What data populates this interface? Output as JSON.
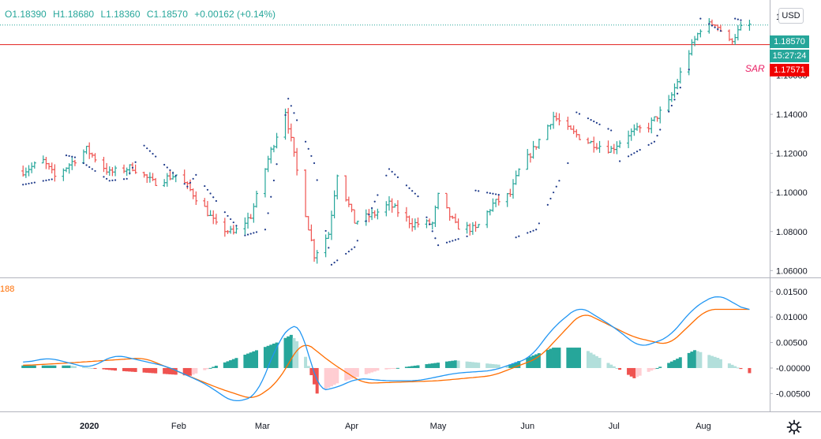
{
  "legend": {
    "open": "O1.18390",
    "high": "H1.18680",
    "low": "L1.18360",
    "close": "C1.18570",
    "change": "+0.00162 (+0.14%)"
  },
  "currency_button": "USD",
  "price_badge": "1.18570",
  "timer_badge": "15:27:24",
  "sar_badge": "1.17571",
  "sar_label": "SAR",
  "indicator_label": "188",
  "colors": {
    "up": "#26a69a",
    "down": "#ef5350",
    "sar": "#1e3a8a",
    "macd": "#2196f3",
    "signal": "#ff6d00",
    "hist_up_strong": "#26a69a",
    "hist_up_weak": "#b2dfdb",
    "hist_down_strong": "#ef5350",
    "hist_down_weak": "#ffcdd2",
    "hline": "#e53935",
    "price_line": "#26a69a"
  },
  "chart_data": [
    {
      "type": "ohlc",
      "y_ticks": [
        "1.06000",
        "1.08000",
        "1.10000",
        "1.12000",
        "1.14000",
        "1.16000"
      ],
      "y_top_tick": "1.1",
      "ylim": [
        1.0565,
        1.1965
      ],
      "x_ticks": [
        "2020",
        "Feb",
        "Mar",
        "Apr",
        "May",
        "Jun",
        "Jul",
        "Aug"
      ],
      "x_tick_dates": [
        "2020-01-01",
        "2020-02-01",
        "2020-03-01",
        "2020-04-01",
        "2020-05-01",
        "2020-06-01",
        "2020-07-01",
        "2020-08-01"
      ],
      "horizontal_line": 1.1757,
      "last_price": 1.1857,
      "anchors": [
        [
          "2019-12-09",
          1.111
        ],
        [
          "2019-12-16",
          1.116
        ],
        [
          "2019-12-20",
          1.108
        ],
        [
          "2019-12-31",
          1.122
        ],
        [
          "2020-01-08",
          1.11
        ],
        [
          "2020-01-16",
          1.113
        ],
        [
          "2020-01-23",
          1.105
        ],
        [
          "2020-01-31",
          1.109
        ],
        [
          "2020-02-04",
          1.103
        ],
        [
          "2020-02-10",
          1.092
        ],
        [
          "2020-02-14",
          1.083
        ],
        [
          "2020-02-20",
          1.079
        ],
        [
          "2020-02-26",
          1.088
        ],
        [
          "2020-03-03",
          1.117
        ],
        [
          "2020-03-09",
          1.142
        ],
        [
          "2020-03-13",
          1.111
        ],
        [
          "2020-03-19",
          1.068
        ],
        [
          "2020-03-24",
          1.079
        ],
        [
          "2020-03-27",
          1.11
        ],
        [
          "2020-04-02",
          1.085
        ],
        [
          "2020-04-09",
          1.089
        ],
        [
          "2020-04-14",
          1.094
        ],
        [
          "2020-04-22",
          1.084
        ],
        [
          "2020-04-29",
          1.084
        ],
        [
          "2020-05-01",
          1.098
        ],
        [
          "2020-05-07",
          1.083
        ],
        [
          "2020-05-14",
          1.081
        ],
        [
          "2020-05-20",
          1.094
        ],
        [
          "2020-05-26",
          1.099
        ],
        [
          "2020-05-29",
          1.111
        ],
        [
          "2020-06-03",
          1.122
        ],
        [
          "2020-06-10",
          1.139
        ],
        [
          "2020-06-15",
          1.132
        ],
        [
          "2020-06-22",
          1.126
        ],
        [
          "2020-06-30",
          1.122
        ],
        [
          "2020-07-06",
          1.13
        ],
        [
          "2020-07-13",
          1.134
        ],
        [
          "2020-07-20",
          1.146
        ],
        [
          "2020-07-27",
          1.172
        ],
        [
          "2020-07-31",
          1.184
        ],
        [
          "2020-08-05",
          1.187
        ],
        [
          "2020-08-10",
          1.177
        ],
        [
          "2020-08-14",
          1.184
        ],
        [
          "2020-08-17",
          1.1857
        ]
      ],
      "sar": [
        [
          "2019-12-09",
          1.104
        ],
        [
          "2019-12-20",
          1.107
        ],
        [
          "2019-12-24",
          1.119
        ],
        [
          "2019-12-27",
          1.118
        ],
        [
          "2020-01-08",
          1.106
        ],
        [
          "2020-01-14",
          1.107
        ],
        [
          "2020-01-20",
          1.124
        ],
        [
          "2020-02-04",
          1.103
        ],
        [
          "2020-02-07",
          1.109
        ],
        [
          "2020-02-18",
          1.088
        ],
        [
          "2020-02-24",
          1.078
        ],
        [
          "2020-03-02",
          1.081
        ],
        [
          "2020-03-10",
          1.148
        ],
        [
          "2020-03-19",
          1.115
        ],
        [
          "2020-03-25",
          1.063
        ],
        [
          "2020-04-02",
          1.072
        ],
        [
          "2020-04-14",
          1.112
        ],
        [
          "2020-04-24",
          1.098
        ],
        [
          "2020-05-01",
          1.073
        ],
        [
          "2020-05-12",
          1.078
        ],
        [
          "2020-05-14",
          1.101
        ],
        [
          "2020-05-25",
          1.098
        ],
        [
          "2020-05-28",
          1.077
        ],
        [
          "2020-06-04",
          1.081
        ],
        [
          "2020-06-10",
          1.1
        ],
        [
          "2020-06-16",
          1.118
        ],
        [
          "2020-06-18",
          1.141
        ],
        [
          "2020-07-01",
          1.131
        ],
        [
          "2020-07-03",
          1.116
        ],
        [
          "2020-07-15",
          1.126
        ],
        [
          "2020-07-28",
          1.166
        ],
        [
          "2020-07-31",
          1.189
        ],
        [
          "2020-08-10",
          1.18
        ],
        [
          "2020-08-12",
          1.189
        ],
        [
          "2020-08-17",
          1.187
        ]
      ]
    },
    {
      "type": "macd",
      "y_ticks": [
        "0.01500",
        "0.01000",
        "0.00500",
        "-0.00000",
        "-0.00500"
      ],
      "ylim": [
        -0.0085,
        0.0176
      ],
      "macd": [
        [
          "2019-12-09",
          0.001
        ],
        [
          "2019-12-18",
          0.002
        ],
        [
          "2020-01-01",
          0.0
        ],
        [
          "2020-01-10",
          0.0026
        ],
        [
          "2020-01-28",
          0.0003
        ],
        [
          "2020-02-10",
          -0.003
        ],
        [
          "2020-02-20",
          -0.0068
        ],
        [
          "2020-02-28",
          -0.0055
        ],
        [
          "2020-03-06",
          0.0045
        ],
        [
          "2020-03-11",
          0.0088
        ],
        [
          "2020-03-15",
          0.008
        ],
        [
          "2020-03-20",
          -0.0045
        ],
        [
          "2020-03-26",
          -0.004
        ],
        [
          "2020-04-03",
          -0.002
        ],
        [
          "2020-04-13",
          -0.0025
        ],
        [
          "2020-04-24",
          -0.0025
        ],
        [
          "2020-05-07",
          -0.001
        ],
        [
          "2020-05-20",
          -0.0005
        ],
        [
          "2020-06-02",
          0.002
        ],
        [
          "2020-06-10",
          0.008
        ],
        [
          "2020-06-19",
          0.0122
        ],
        [
          "2020-07-01",
          0.008
        ],
        [
          "2020-07-10",
          0.004
        ],
        [
          "2020-07-20",
          0.006
        ],
        [
          "2020-07-29",
          0.012
        ],
        [
          "2020-08-06",
          0.0145
        ],
        [
          "2020-08-17",
          0.011
        ]
      ],
      "signal": [
        [
          "2019-12-09",
          0.0005
        ],
        [
          "2019-12-25",
          0.001
        ],
        [
          "2020-01-20",
          0.002
        ],
        [
          "2020-02-15",
          -0.004
        ],
        [
          "2020-02-27",
          -0.0062
        ],
        [
          "2020-03-06",
          -0.003
        ],
        [
          "2020-03-15",
          0.0055
        ],
        [
          "2020-03-25",
          0.001
        ],
        [
          "2020-04-05",
          -0.003
        ],
        [
          "2020-05-01",
          -0.0025
        ],
        [
          "2020-05-20",
          -0.0015
        ],
        [
          "2020-06-05",
          0.002
        ],
        [
          "2020-06-20",
          0.011
        ],
        [
          "2020-07-08",
          0.006
        ],
        [
          "2020-07-20",
          0.0045
        ],
        [
          "2020-08-02",
          0.0115
        ],
        [
          "2020-08-17",
          0.0115
        ]
      ],
      "histogram_anchors": [
        [
          "2019-12-09",
          0.0005
        ],
        [
          "2019-12-25",
          0.0005
        ],
        [
          "2020-01-10",
          -0.0005
        ],
        [
          "2020-02-05",
          -0.0015
        ],
        [
          "2020-03-06",
          0.005
        ],
        [
          "2020-03-11",
          0.0065
        ],
        [
          "2020-03-15",
          0.004
        ],
        [
          "2020-03-20",
          -0.005
        ],
        [
          "2020-03-27",
          -0.003
        ],
        [
          "2020-04-10",
          -0.0005
        ],
        [
          "2020-05-07",
          0.0015
        ],
        [
          "2020-05-25",
          0.0005
        ],
        [
          "2020-06-10",
          0.004
        ],
        [
          "2020-06-20",
          0.004
        ],
        [
          "2020-07-08",
          -0.002
        ],
        [
          "2020-07-20",
          0.001
        ],
        [
          "2020-07-29",
          0.0035
        ],
        [
          "2020-08-06",
          0.002
        ],
        [
          "2020-08-17",
          -0.001
        ]
      ]
    }
  ]
}
